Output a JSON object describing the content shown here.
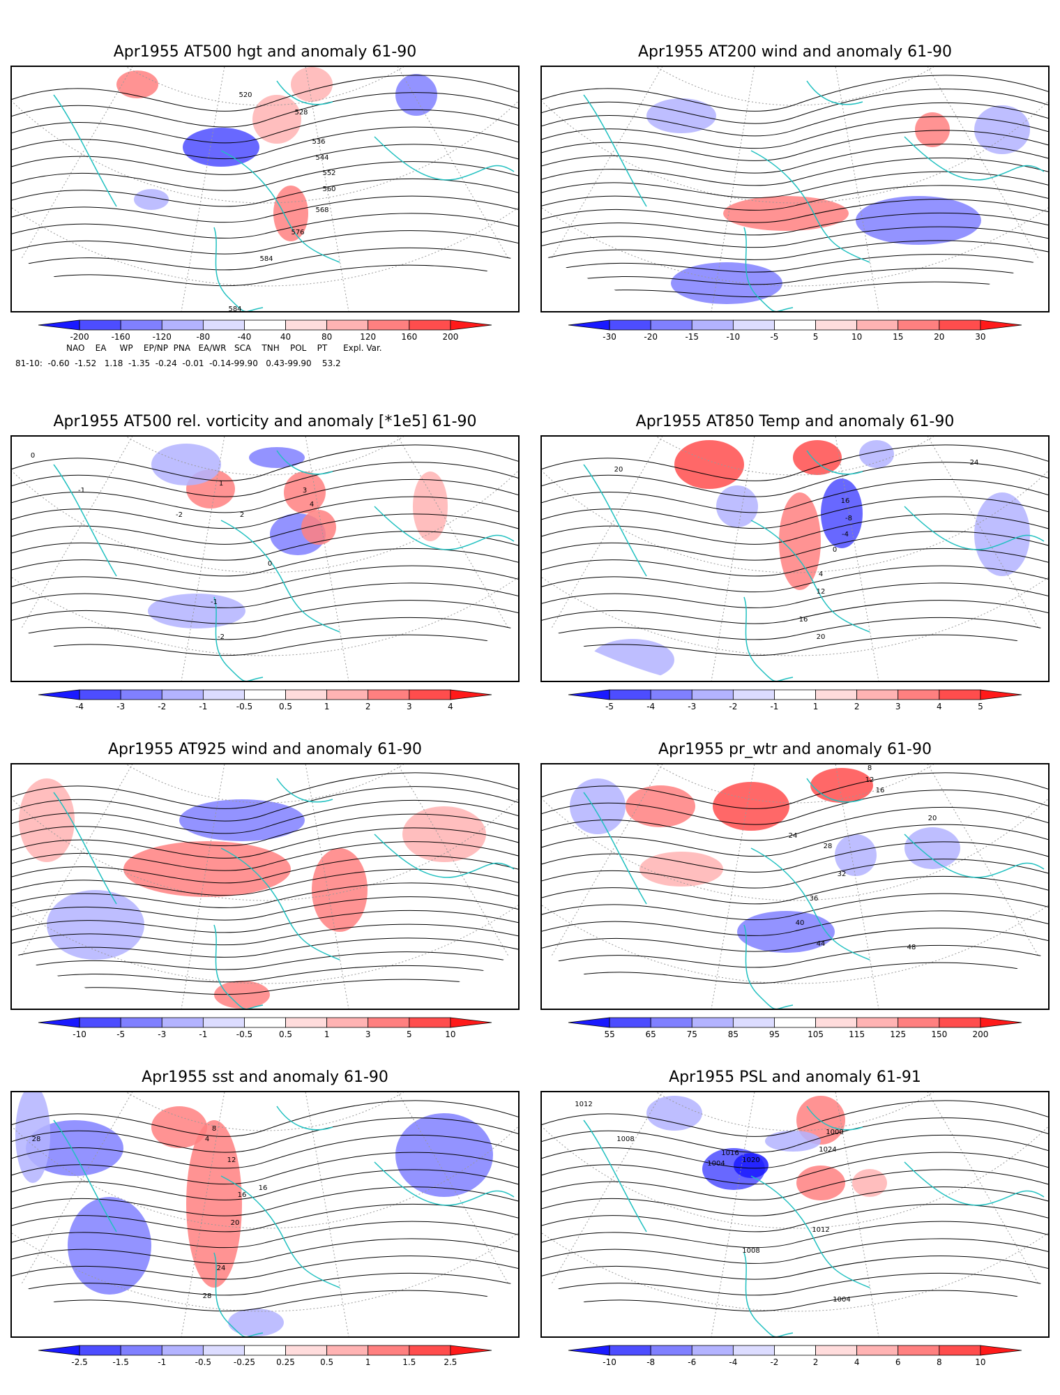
{
  "panels": [
    {
      "title": "Apr1955 AT500 hgt and anomaly 61-90",
      "contour_labels": [
        "520",
        "528",
        "536",
        "544",
        "552",
        "560",
        "568",
        "576",
        "584",
        "584"
      ],
      "colorbar": [
        "-200",
        "-160",
        "-120",
        "-80",
        "-40",
        "40",
        "80",
        "120",
        "160",
        "200"
      ]
    },
    {
      "title": "Apr1955 AT200 wind and anomaly 61-90",
      "contour_labels": [],
      "colorbar": [
        "-30",
        "-20",
        "-15",
        "-10",
        "-5",
        "5",
        "10",
        "15",
        "20",
        "30"
      ]
    },
    {
      "title": "Apr1955 AT500 rel. vorticity and anomaly [*1e5] 61-90",
      "contour_labels": [
        "0",
        "-1",
        "-2",
        "1",
        "2",
        "3",
        "4",
        "0",
        "-1",
        "-2"
      ],
      "colorbar": [
        "-4",
        "-3",
        "-2",
        "-1",
        "-0.5",
        "0.5",
        "1",
        "2",
        "3",
        "4"
      ]
    },
    {
      "title": "Apr1955 AT850 Temp and anomaly 61-90",
      "contour_labels": [
        "20",
        "24",
        "16",
        "-8",
        "-4",
        "0",
        "4",
        "12",
        "16",
        "20"
      ],
      "colorbar": [
        "-5",
        "-4",
        "-3",
        "-2",
        "-1",
        "1",
        "2",
        "3",
        "4",
        "5"
      ]
    },
    {
      "title": "Apr1955 AT925 wind and anomaly 61-90",
      "contour_labels": [],
      "colorbar": [
        "-10",
        "-5",
        "-3",
        "-1",
        "-0.5",
        "0.5",
        "1",
        "3",
        "5",
        "10"
      ]
    },
    {
      "title": "Apr1955 pr_wtr and anomaly 61-90",
      "contour_labels": [
        "8",
        "12",
        "16",
        "20",
        "24",
        "28",
        "32",
        "36",
        "40",
        "44",
        "48"
      ],
      "colorbar": [
        "55",
        "65",
        "75",
        "85",
        "95",
        "105",
        "115",
        "125",
        "150",
        "200"
      ]
    },
    {
      "title": "Apr1955 sst and anomaly 61-90",
      "contour_labels": [
        "28",
        "4",
        "8",
        "12",
        "16",
        "20",
        "24",
        "28",
        "16"
      ],
      "colorbar": [
        "-2.5",
        "-1.5",
        "-1",
        "-0.5",
        "-0.25",
        "0.25",
        "0.5",
        "1",
        "1.5",
        "2.5"
      ]
    },
    {
      "title": "Apr1955 PSL and anomaly 61-91",
      "contour_labels": [
        "1012",
        "1008",
        "1016",
        "1020",
        "1004",
        "1000",
        "1024",
        "1012",
        "1008",
        "1004"
      ],
      "colorbar": [
        "-10",
        "-8",
        "-6",
        "-4",
        "-2",
        "2",
        "4",
        "6",
        "8",
        "10"
      ]
    }
  ],
  "indices": {
    "names_line": "NAO    EA     WP    EP/NP  PNA   EA/WR   SCA    TNH    POL    PT      Expl. Var.",
    "values_line": "81-10:  -0.60  -1.52   1.18  -1.35  -0.24  -0.01  -0.14-99.90   0.43-99.90    53.2"
  },
  "colors": {
    "coast": "#20c0c0",
    "blue_scale": [
      "#1a1aff",
      "#4d4dff",
      "#8080ff",
      "#b3b3ff",
      "#dcdcff"
    ],
    "red_scale": [
      "#ffdcdc",
      "#ffb3b3",
      "#ff8080",
      "#ff4d4d",
      "#ff1a1a"
    ]
  }
}
